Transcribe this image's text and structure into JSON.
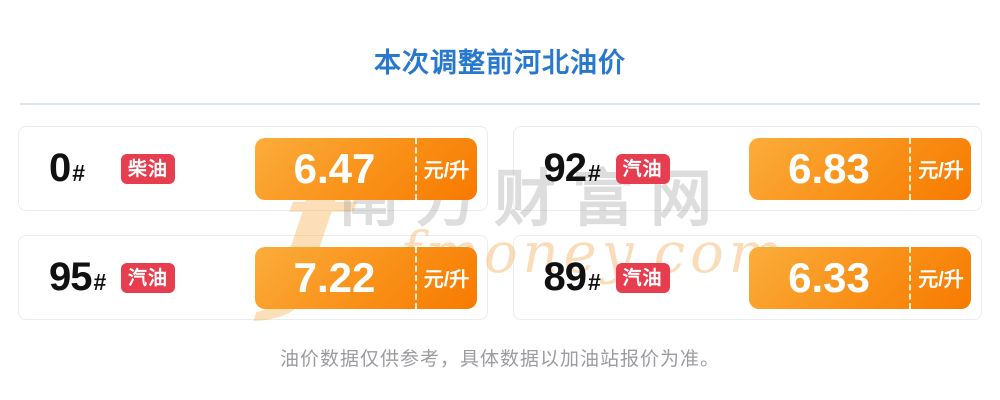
{
  "page": {
    "title": "本次调整前河北油价",
    "footer": "油价数据仅供参考，具体数据以加油站报价为准。"
  },
  "watermark": {
    "logo_glyph": "f",
    "cn_text": "南方财富网",
    "en_text": "fmoney.com"
  },
  "colors": {
    "title_blue": "#2878CE",
    "badge_red": "#E63E4F",
    "price_gradient_start": "#FBAD3C",
    "price_gradient_end": "#F87A00",
    "card_border": "#E9EDF2",
    "divider_grey": "#DEE4EC",
    "footer_grey": "#9C9CA0"
  },
  "cards": [
    {
      "grade": "0",
      "hash": "#",
      "type": "柴油",
      "price": "6.47",
      "unit": "元/升"
    },
    {
      "grade": "92",
      "hash": "#",
      "type": "汽油",
      "price": "6.83",
      "unit": "元/升"
    },
    {
      "grade": "95",
      "hash": "#",
      "type": "汽油",
      "price": "7.22",
      "unit": "元/升"
    },
    {
      "grade": "89",
      "hash": "#",
      "type": "汽油",
      "price": "6.33",
      "unit": "元/升"
    }
  ]
}
